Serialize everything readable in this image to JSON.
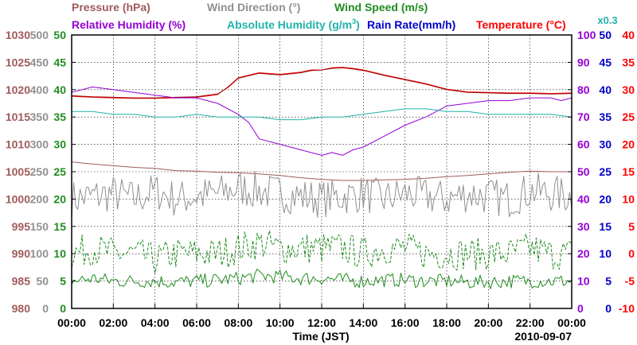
{
  "chart_data": {
    "type": "line",
    "date": "2010-09-07",
    "xlabel": "Time (JST)",
    "x_ticks": [
      "00:00",
      "02:00",
      "04:00",
      "06:00",
      "08:00",
      "10:00",
      "12:00",
      "14:00",
      "16:00",
      "18:00",
      "20:00",
      "22:00",
      "00:00"
    ],
    "x_range_hours": [
      0,
      24
    ],
    "legend": [
      {
        "text": "Pressure (hPa)",
        "color": "#a05a5a"
      },
      {
        "text": "Wind Direction (°)",
        "color": "#909090"
      },
      {
        "text": "Wind Speed (m/s)",
        "color": "#1f8c1f"
      },
      {
        "text": "Relative Humidity (%)",
        "color": "#9400d3"
      },
      {
        "text": "Absolute Humidity (g/m",
        "sup": "3",
        "close": ")",
        "color": "#20b2aa"
      },
      {
        "text": "Rain Rate(mm/h)",
        "color": "#0000cc"
      },
      {
        "text": "Temperature (°C)",
        "color": "#ff0000"
      }
    ],
    "scale_note": {
      "text": "x0.3",
      "color": "#20b2aa"
    },
    "axes": {
      "pressure": {
        "label": "Pressure (hPa)",
        "color": "#a05a5a",
        "range": [
          980,
          1030
        ],
        "ticks": [
          "1030",
          "1025",
          "1020",
          "1015",
          "1010",
          "1005",
          "1000",
          "995",
          "990",
          "985",
          "980"
        ]
      },
      "wind_direction": {
        "label": "Wind Direction (°)",
        "color": "#909090",
        "range": [
          0,
          500
        ],
        "ticks": [
          "500",
          "450",
          "400",
          "350",
          "300",
          "250",
          "200",
          "150",
          "100",
          "50",
          "0"
        ]
      },
      "wind_speed": {
        "label": "Wind Speed (m/s)",
        "color": "#1f8c1f",
        "range": [
          0,
          50
        ],
        "ticks": [
          "50",
          "45",
          "40",
          "35",
          "30",
          "25",
          "20",
          "15",
          "10",
          "5",
          "0"
        ]
      },
      "humidity": {
        "label": "Relative Humidity (%)",
        "color": "#9400d3",
        "range": [
          0,
          100
        ],
        "ticks": [
          "100",
          "90",
          "80",
          "70",
          "60",
          "50",
          "40",
          "30",
          "20",
          "10",
          "0"
        ]
      },
      "rain_rate": {
        "label": "Rain Rate(mm/h)",
        "color": "#0000cc",
        "range": [
          0,
          50
        ],
        "ticks": [
          "50",
          "45",
          "40",
          "35",
          "30",
          "25",
          "20",
          "15",
          "10",
          "5",
          "0"
        ]
      },
      "temperature": {
        "label": "Temperature (°C)",
        "color": "#ff0000",
        "range": [
          -10,
          40
        ],
        "ticks": [
          "40",
          "35",
          "30",
          "25",
          "20",
          "15",
          "10",
          "5",
          "0",
          "-5",
          "-10"
        ]
      }
    },
    "grid": true,
    "series": [
      {
        "name": "Temperature",
        "axis": "temperature",
        "color": "#ff0000",
        "x": [
          0,
          1,
          2,
          3,
          4,
          5,
          6,
          7,
          7.5,
          8,
          9,
          10,
          11,
          11.5,
          12,
          12.5,
          13,
          13.5,
          14,
          15,
          16,
          17,
          18,
          19,
          20,
          21,
          22,
          23,
          24
        ],
        "y": [
          28.8,
          28.6,
          28.5,
          28.4,
          28.4,
          28.5,
          28.6,
          29.1,
          30.5,
          32.2,
          33.1,
          32.8,
          33.2,
          33.6,
          33.6,
          34,
          34.1,
          33.9,
          33.6,
          32.7,
          31.9,
          31.1,
          30.1,
          29.6,
          29.5,
          29.4,
          29.4,
          29.3,
          29.4
        ]
      },
      {
        "name": "Temperature (dark trace)",
        "axis": "temperature",
        "color": "#990000",
        "x": [
          0,
          1,
          2,
          3,
          4,
          5,
          6,
          7,
          7.5,
          8,
          9,
          10,
          11,
          11.5,
          12,
          12.5,
          13,
          13.5,
          14,
          15,
          16,
          17,
          18,
          19,
          20,
          21,
          22,
          23,
          24
        ],
        "y": [
          28.9,
          28.7,
          28.6,
          28.5,
          28.5,
          28.6,
          28.7,
          29.2,
          30.4,
          32.1,
          33,
          32.7,
          33.1,
          33.5,
          33.6,
          33.9,
          34,
          33.8,
          33.5,
          32.6,
          31.8,
          31,
          30,
          29.5,
          29.4,
          29.3,
          29.3,
          29.2,
          29.3
        ]
      },
      {
        "name": "Relative Humidity",
        "axis": "humidity",
        "color": "#9400d3",
        "x": [
          0,
          1,
          2,
          3,
          4,
          5,
          6,
          7,
          8,
          8.5,
          9,
          10,
          11,
          12,
          12.5,
          13,
          13.5,
          14,
          15,
          16,
          17,
          18,
          19,
          20,
          21,
          22,
          23,
          23.5,
          24
        ],
        "y": [
          79,
          81,
          80,
          79,
          78,
          77,
          77,
          75,
          71,
          68,
          62,
          60,
          58,
          56,
          57,
          56,
          58,
          59,
          63,
          67,
          70,
          74,
          75,
          76,
          76,
          77,
          77,
          76,
          77
        ]
      },
      {
        "name": "Absolute Humidity",
        "axis": "humidity",
        "color": "#20b2aa",
        "x": [
          0,
          1,
          2,
          3,
          4,
          5,
          6,
          7,
          8,
          9,
          10,
          11,
          12,
          13,
          14,
          15,
          16,
          17,
          18,
          19,
          20,
          21,
          22,
          23,
          24
        ],
        "y": [
          72,
          72,
          71,
          71,
          70,
          70,
          71,
          70,
          70,
          70,
          69,
          69,
          70,
          70,
          71,
          72,
          73,
          73,
          72,
          72,
          71,
          71,
          71,
          71,
          70
        ]
      },
      {
        "name": "Pressure",
        "axis": "pressure",
        "color": "#a05a5a",
        "x": [
          0,
          1,
          2,
          3,
          4,
          5,
          6,
          7,
          8,
          9,
          10,
          11,
          12,
          13,
          14,
          15,
          16,
          17,
          18,
          19,
          20,
          21,
          22,
          23,
          24
        ],
        "y": [
          1006.8,
          1006.4,
          1006.1,
          1005.8,
          1005.6,
          1005.2,
          1005.1,
          1004.9,
          1004.8,
          1004.6,
          1004.3,
          1003.9,
          1003.6,
          1003.4,
          1003.4,
          1003.5,
          1003.6,
          1003.8,
          1004.1,
          1004.3,
          1004.6,
          1004.9,
          1005.1,
          1005,
          1005
        ]
      },
      {
        "name": "Wind Direction",
        "axis": "wind_direction",
        "color": "#909090",
        "x": [
          0,
          1,
          2,
          3,
          4,
          5,
          6,
          7,
          8,
          9,
          10,
          11,
          12,
          13,
          14,
          15,
          16,
          17,
          18,
          19,
          20,
          21,
          22,
          23,
          24
        ],
        "y": [
          200,
          205,
          210,
          200,
          215,
          200,
          205,
          210,
          220,
          215,
          210,
          205,
          200,
          205,
          210,
          200,
          210,
          205,
          200,
          210,
          205,
          200,
          215,
          210,
          205
        ],
        "noise": 35
      },
      {
        "name": "Wind Speed (gust)",
        "axis": "wind_speed",
        "color": "#1f8c1f",
        "dashed": true,
        "x": [
          0,
          1,
          2,
          3,
          4,
          5,
          6,
          7,
          8,
          9,
          10,
          11,
          12,
          13,
          14,
          15,
          16,
          17,
          18,
          19,
          20,
          21,
          22,
          23,
          24
        ],
        "y": [
          10,
          11,
          10,
          10,
          9,
          10,
          10,
          10,
          11,
          12,
          11,
          11,
          11,
          11,
          10,
          11,
          11,
          10,
          10,
          10,
          10,
          10,
          11,
          10,
          10
        ],
        "noise": 3
      },
      {
        "name": "Wind Speed (mean)",
        "axis": "wind_speed",
        "color": "#1f8c1f",
        "x": [
          0,
          1,
          2,
          3,
          4,
          5,
          6,
          7,
          8,
          9,
          10,
          11,
          12,
          13,
          14,
          15,
          16,
          17,
          18,
          19,
          20,
          21,
          22,
          23,
          24
        ],
        "y": [
          5,
          5.5,
          5,
          5,
          5,
          4.8,
          5,
          5.2,
          5.5,
          6,
          5.8,
          5.5,
          5.5,
          5.2,
          5,
          5.2,
          5.2,
          5,
          5,
          4.8,
          4.8,
          5,
          5,
          5,
          5
        ],
        "noise": 1.3
      },
      {
        "name": "Rain Rate",
        "axis": "rain_rate",
        "color": "#0000cc",
        "x": [
          0,
          24
        ],
        "y": [
          0,
          0
        ]
      }
    ]
  }
}
